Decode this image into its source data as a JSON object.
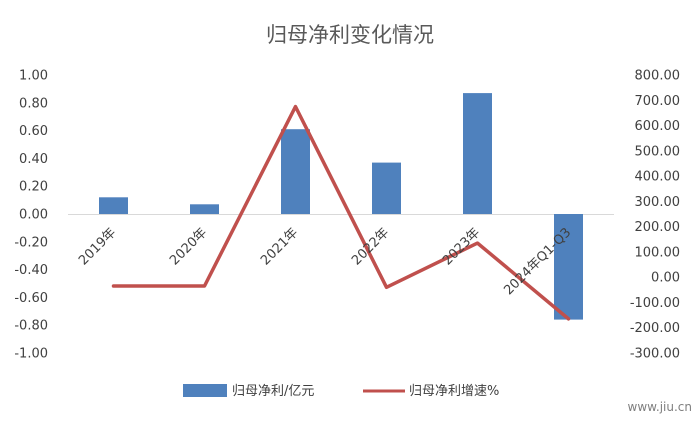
{
  "chart_data": {
    "type": "bar+line",
    "title": "归母净利变化情况",
    "categories": [
      "2019年",
      "2020年",
      "2021年",
      "2022年",
      "2023年",
      "2024年Q1-Q3"
    ],
    "series": [
      {
        "name": "归母净利/亿元",
        "type": "bar",
        "axis": "left",
        "color": "#4f81bd",
        "values": [
          0.12,
          0.07,
          0.61,
          0.37,
          0.87,
          -0.76
        ]
      },
      {
        "name": "归母净利增速%",
        "type": "line",
        "axis": "right",
        "color": "#c0504d",
        "values": [
          -35,
          -35,
          675,
          -40,
          135,
          -165
        ]
      }
    ],
    "left_axis": {
      "min": -1.0,
      "max": 1.0,
      "step": 0.2,
      "tick_labels": [
        "1.00",
        "0.80",
        "0.60",
        "0.40",
        "0.20",
        "0.00",
        "-0.20",
        "-0.40",
        "-0.60",
        "-0.80",
        "-1.00"
      ]
    },
    "right_axis": {
      "min": -300,
      "max": 800,
      "step": 100,
      "tick_labels": [
        "800.00",
        "700.00",
        "600.00",
        "500.00",
        "400.00",
        "300.00",
        "200.00",
        "100.00",
        "0.00",
        "-100.00",
        "-200.00",
        "-300.00"
      ]
    },
    "grid": false,
    "legend_position": "bottom"
  },
  "watermark": "www.jiu.cn"
}
